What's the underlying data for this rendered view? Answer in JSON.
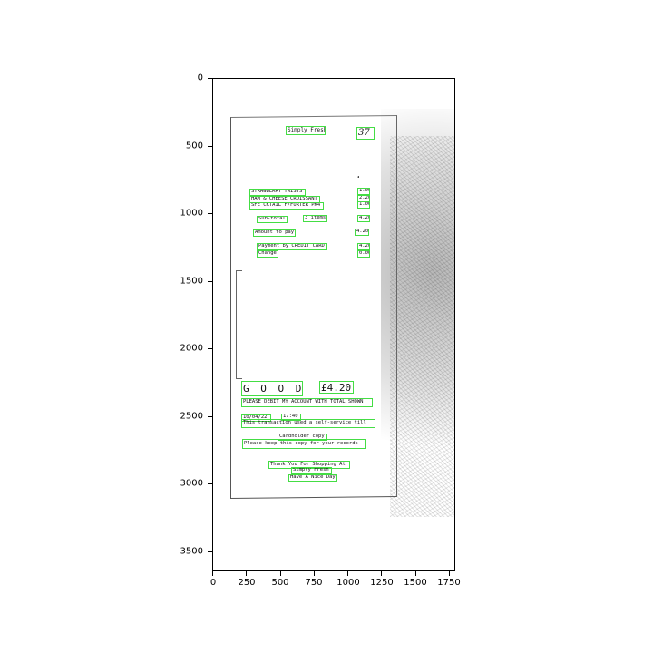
{
  "figure": {
    "x_ticks": [
      "0",
      "250",
      "500",
      "750",
      "1000",
      "1250",
      "1500",
      "1750"
    ],
    "y_ticks": [
      "0",
      "500",
      "1000",
      "1500",
      "2000",
      "2500",
      "3000",
      "3500"
    ]
  },
  "receipt": {
    "store": "Simply Fresh",
    "handwritten_number": "37",
    "currency_symbol": "£",
    "items": [
      {
        "name": "STRAWBERRY TWISTS",
        "price": "1.00"
      },
      {
        "name": "HAM & CHEESE CROISSANT",
        "price": "2.20"
      },
      {
        "name": "SFE CKTAIL F/FURTER PK4",
        "price": "1.00"
      }
    ],
    "subtotal_label": "Sub-total",
    "subtotal_count": "3 items",
    "subtotal_value": "4.20",
    "amount_to_pay_label": "Amount to pay",
    "amount_to_pay_value": "4.20",
    "payment_label": "Payment by CREDIT CARD",
    "payment_value": "4.20",
    "change_label": "Change",
    "change_value": "0.00",
    "goods_label": "G O O D S",
    "goods_amount": "£4.20",
    "debit_text": "PLEASE DEBIT MY ACCOUNT WITH TOTAL SHOWN",
    "date": "10/04/22",
    "time": "17:40",
    "transaction_text": "This transaction used a self-service till",
    "cardholder_copy": "Cardholder copy",
    "keep_copy": "Please keep this copy for your records",
    "thanks": "Thank You For Shopping At",
    "thanks_store": "Simply Fresh",
    "nice_day": "Have A Nice Day"
  }
}
